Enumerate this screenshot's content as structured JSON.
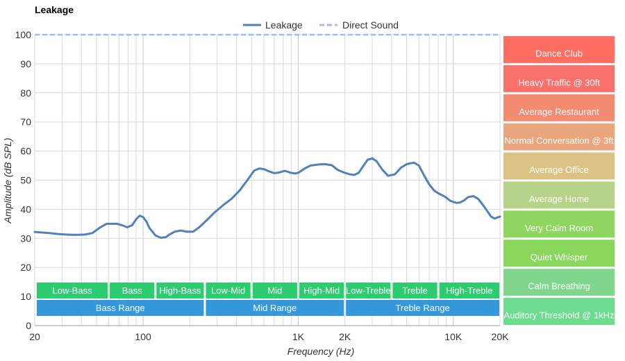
{
  "chart_data": {
    "type": "line",
    "title": "Leakage",
    "xlabel": "Frequency (Hz)",
    "ylabel": "Amplitude (dB SPL)",
    "x_scale": "log",
    "xlim": [
      20,
      20000
    ],
    "ylim": [
      0,
      100
    ],
    "grid": true,
    "legend_position": "top-center",
    "x_ticks": [
      {
        "value": 20,
        "label": "20"
      },
      {
        "value": 100,
        "label": "100"
      },
      {
        "value": 1000,
        "label": "1K"
      },
      {
        "value": 2000,
        "label": "2K"
      },
      {
        "value": 10000,
        "label": "10K"
      },
      {
        "value": 20000,
        "label": "20K"
      }
    ],
    "y_ticks": [
      0,
      10,
      20,
      30,
      40,
      50,
      60,
      70,
      80,
      90,
      100
    ],
    "series": [
      {
        "name": "Leakage",
        "color": "#4f81bd",
        "style": "solid",
        "x": [
          20,
          22,
          25,
          28,
          32,
          35,
          38,
          42,
          47,
          52,
          58,
          63,
          68,
          73,
          79,
          85,
          90,
          95,
          100,
          105,
          110,
          120,
          130,
          140,
          150,
          160,
          175,
          190,
          210,
          230,
          260,
          290,
          330,
          370,
          420,
          470,
          520,
          560,
          600,
          650,
          700,
          750,
          820,
          900,
          950,
          1000,
          1100,
          1200,
          1350,
          1500,
          1650,
          1800,
          2000,
          2150,
          2300,
          2450,
          2600,
          2800,
          3000,
          3200,
          3500,
          3800,
          4200,
          4600,
          5000,
          5300,
          5600,
          6000,
          6500,
          7000,
          7500,
          8000,
          8500,
          9000,
          9500,
          10000,
          10500,
          11000,
          11700,
          12500,
          13500,
          14500,
          15500,
          16500,
          17500,
          18500,
          20000
        ],
        "y": [
          32.2,
          32,
          31.8,
          31.5,
          31.3,
          31.2,
          31.2,
          31.3,
          31.8,
          33.5,
          35,
          35,
          35,
          34.5,
          33.8,
          34.5,
          36.5,
          37.8,
          37.3,
          35.8,
          33.5,
          31,
          30.2,
          30.4,
          31.5,
          32.3,
          32.7,
          32.3,
          32.3,
          33.8,
          36.5,
          39,
          41.5,
          43.5,
          46.5,
          50,
          53.3,
          54,
          53.8,
          53,
          52.4,
          52.6,
          53.2,
          52.5,
          52.3,
          52.5,
          54,
          55,
          55.4,
          55.5,
          55.1,
          53.5,
          52.5,
          52,
          51.8,
          52.5,
          54.5,
          57,
          57.5,
          56.5,
          53.5,
          51.5,
          52,
          54.3,
          55.5,
          55.8,
          56,
          55,
          51.5,
          48.5,
          46.5,
          45.5,
          44.8,
          44,
          43,
          42.5,
          42.2,
          42.3,
          43,
          44.2,
          44.5,
          43.5,
          41.5,
          39.5,
          37.5,
          36.8,
          37.5
        ]
      },
      {
        "name": "Direct Sound",
        "color": "#a4b9f2",
        "style": "dashed",
        "x": [
          20,
          20000
        ],
        "y": [
          100,
          100
        ]
      }
    ],
    "frequency_bands": [
      {
        "label": "Low-Bass",
        "start": 20,
        "end": 60,
        "row": 1
      },
      {
        "label": "Bass",
        "start": 60,
        "end": 120,
        "row": 1
      },
      {
        "label": "High-Bass",
        "start": 120,
        "end": 250,
        "row": 1
      },
      {
        "label": "Low-Mid",
        "start": 250,
        "end": 500,
        "row": 1
      },
      {
        "label": "Mid",
        "start": 500,
        "end": 1000,
        "row": 1
      },
      {
        "label": "High-Mid",
        "start": 1000,
        "end": 2000,
        "row": 1
      },
      {
        "label": "Low-Treble",
        "start": 2000,
        "end": 4000,
        "row": 1
      },
      {
        "label": "Treble",
        "start": 4000,
        "end": 8000,
        "row": 1
      },
      {
        "label": "High-Treble",
        "start": 8000,
        "end": 20000,
        "row": 1
      },
      {
        "label": "Bass Range",
        "start": 20,
        "end": 250,
        "row": 2
      },
      {
        "label": "Mid Range",
        "start": 250,
        "end": 2000,
        "row": 2
      },
      {
        "label": "Treble Range",
        "start": 2000,
        "end": 20000,
        "row": 2
      }
    ],
    "reference_levels": [
      {
        "label": "Dance Club",
        "level": 100,
        "color": "#ff6f61"
      },
      {
        "label": "Heavy Traffic @ 30ft",
        "level": 90,
        "color": "#f9716b"
      },
      {
        "label": "Average Restaurant",
        "level": 80,
        "color": "#f28b72"
      },
      {
        "label": "Normal Conversation @ 3ft",
        "level": 70,
        "color": "#e9a57b"
      },
      {
        "label": "Average Office",
        "level": 60,
        "color": "#dbc285"
      },
      {
        "label": "Average Home",
        "level": 50,
        "color": "#b6d38a"
      },
      {
        "label": "Very Calm Room",
        "level": 40,
        "color": "#8fd660"
      },
      {
        "label": "Quiet Whisper",
        "level": 30,
        "color": "#88d65a"
      },
      {
        "label": "Calm Breathing",
        "level": 20,
        "color": "#7fd68c"
      },
      {
        "label": "Auditory Threshold @ 1kHz",
        "level": 10,
        "color": "#6cdc8e"
      }
    ]
  }
}
